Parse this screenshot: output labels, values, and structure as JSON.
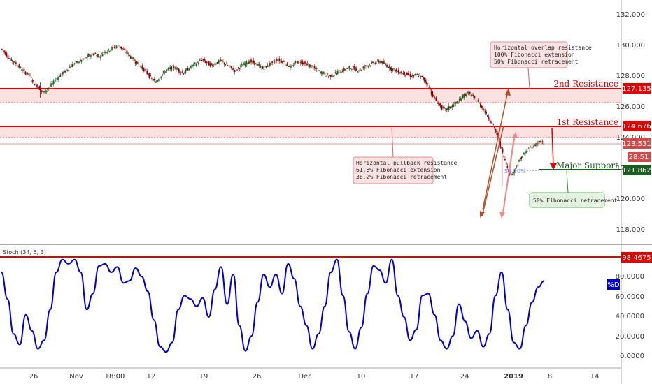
{
  "chart_data": [
    {
      "type": "candlestick",
      "title": "",
      "x_ticks": [
        "26",
        "Nov",
        "18:00",
        "12",
        "19",
        "26",
        "Dec",
        "10",
        "17",
        "24",
        "2019",
        "8",
        "14"
      ],
      "y_ticks": [
        "132.000",
        "130.000",
        "128.000",
        "126.000",
        "124.000",
        "122.000",
        "120.000",
        "118.000"
      ],
      "ylim": [
        117,
        133
      ],
      "levels": [
        {
          "name": "2nd Resistance",
          "value": 127.135,
          "label": "127.135"
        },
        {
          "name": "1st Resistance",
          "value": 124.676,
          "label": "124.676"
        },
        {
          "name": "Major Support",
          "value": 121.862,
          "label": "121.862"
        }
      ],
      "current_price": {
        "label": "123.531",
        "value": 123.531
      },
      "countdown": "28:51",
      "fib_marker": "50.00%",
      "annotations": [
        {
          "lines": [
            "Horizontal overlap resistance",
            "100% Fibonacci extension",
            "50% Fibonacci retracement"
          ]
        },
        {
          "lines": [
            "Horizontal pullback resistance",
            "61.8% Fibonacci extension",
            "38.2% Fibonacci retracement"
          ]
        },
        {
          "lines": [
            "50% Fibonacci retracement"
          ]
        }
      ],
      "price_path": [
        129.8,
        129.5,
        129.1,
        128.9,
        128.6,
        128.3,
        128.1,
        127.6,
        127.3,
        126.9,
        127.2,
        127.5,
        127.9,
        128.2,
        128.4,
        128.7,
        128.9,
        129.0,
        129.2,
        129.4,
        129.5,
        129.3,
        129.6,
        129.7,
        129.9,
        130.0,
        129.8,
        129.5,
        129.2,
        128.9,
        128.6,
        128.3,
        127.9,
        127.6,
        128.0,
        128.3,
        128.5,
        128.6,
        128.4,
        128.2,
        128.5,
        128.7,
        128.9,
        129.1,
        128.9,
        128.7,
        128.9,
        129.0,
        128.8,
        128.6,
        128.4,
        128.6,
        128.8,
        129.0,
        128.9,
        128.7,
        128.5,
        128.7,
        128.9,
        129.1,
        129.0,
        128.8,
        128.6,
        128.9,
        129.0,
        128.8,
        128.7,
        128.5,
        128.3,
        128.2,
        128.0,
        128.1,
        128.3,
        128.4,
        128.5,
        128.6,
        128.4,
        128.5,
        128.7,
        128.8,
        128.9,
        129.0,
        128.8,
        128.6,
        128.4,
        128.3,
        128.2,
        128.1,
        128.0,
        128.1,
        127.9,
        127.6,
        126.9,
        126.4,
        126.0,
        125.8,
        126.0,
        126.2,
        126.4,
        126.8,
        126.9,
        126.6,
        126.3,
        125.9,
        125.4,
        124.9,
        124.2,
        123.2,
        122.2,
        121.5,
        122.0,
        122.6,
        123.0,
        123.3,
        123.5,
        123.7,
        123.6
      ]
    },
    {
      "type": "line",
      "title": "Stoch (34, 5, 3)",
      "y_ticks": [
        "80.0000",
        "60.0000",
        "40.0000",
        "20.0000",
        "0.0000"
      ],
      "ylim": [
        -10,
        105
      ],
      "level": {
        "value": 98.4675,
        "label": "98.4675"
      },
      "current_tag": "%D",
      "values": [
        80,
        55,
        22,
        12,
        40,
        25,
        8,
        16,
        45,
        80,
        92,
        88,
        92,
        80,
        45,
        60,
        86,
        88,
        80,
        85,
        70,
        72,
        84,
        76,
        62,
        35,
        10,
        5,
        14,
        45,
        58,
        55,
        48,
        56,
        38,
        64,
        85,
        50,
        78,
        30,
        6,
        20,
        52,
        78,
        66,
        78,
        60,
        88,
        74,
        48,
        30,
        8,
        22,
        48,
        80,
        92,
        58,
        24,
        8,
        28,
        60,
        86,
        82,
        70,
        92,
        58,
        38,
        16,
        26,
        58,
        60,
        40,
        16,
        8,
        20,
        50,
        34,
        18,
        25,
        10,
        22,
        58,
        80,
        45,
        14,
        8,
        30,
        52,
        66,
        72
      ]
    }
  ],
  "colors": {
    "resistance": "#e00000",
    "support": "#1b5e20",
    "stoch_line": "#0000d0",
    "up_candle": "#1b5e20",
    "down_candle": "#8b0000",
    "arrow_brown": "#b0502a",
    "arrow_pink": "#f08a8a"
  }
}
